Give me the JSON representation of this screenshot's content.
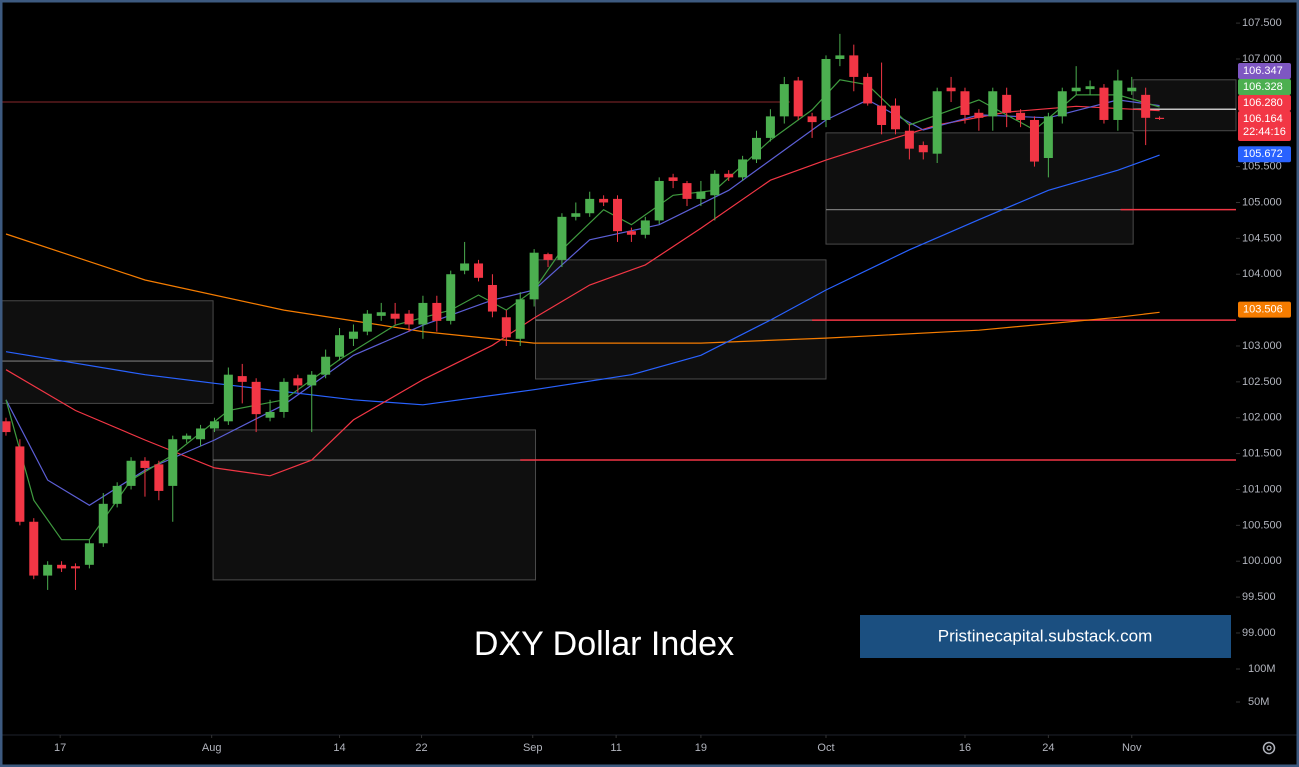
{
  "chart_data": {
    "type": "candlestick",
    "title": "DXY Dollar Index",
    "watermark": "Pristinecapital.substack.com",
    "up_color": "#4caf50",
    "down_color": "#f23645",
    "ylim": [
      97.578,
      107.822
    ],
    "xlim": [
      -0.43,
      88.5
    ],
    "yticks": [
      {
        "value": 107.5,
        "label": "107.500"
      },
      {
        "value": 107,
        "label": "107.000"
      },
      {
        "value": 105.5,
        "label": "105.500"
      },
      {
        "value": 105,
        "label": "105.000"
      },
      {
        "value": 104.5,
        "label": "104.500"
      },
      {
        "value": 104,
        "label": "104.000"
      },
      {
        "value": 103,
        "label": "103.000"
      },
      {
        "value": 102.5,
        "label": "102.500"
      },
      {
        "value": 102,
        "label": "102.000"
      },
      {
        "value": 101.5,
        "label": "101.500"
      },
      {
        "value": 101,
        "label": "101.000"
      },
      {
        "value": 100.5,
        "label": "100.500"
      },
      {
        "value": 100,
        "label": "100.000"
      },
      {
        "value": 99.5,
        "label": "99.500"
      },
      {
        "value": 99,
        "label": "99.000"
      }
    ],
    "volume_ylim": [
      0,
      100000000
    ],
    "volume_ticks": [
      {
        "value": 100000000,
        "label": "100M"
      },
      {
        "value": 50000000,
        "label": "50M"
      }
    ],
    "xticks": [
      {
        "value": 3.9,
        "label": "17"
      },
      {
        "value": 14.8,
        "label": "Aug"
      },
      {
        "value": 24.0,
        "label": "14"
      },
      {
        "value": 29.9,
        "label": "22"
      },
      {
        "value": 37.9,
        "label": "Sep"
      },
      {
        "value": 43.9,
        "label": "11"
      },
      {
        "value": 50.0,
        "label": "19"
      },
      {
        "value": 59.0,
        "label": "Oct"
      },
      {
        "value": 69.0,
        "label": "16"
      },
      {
        "value": 75.0,
        "label": "24"
      },
      {
        "value": 81.0,
        "label": "Nov"
      }
    ],
    "open": [
      101.95,
      101.6,
      100.55,
      99.8,
      99.95,
      99.93,
      99.95,
      100.25,
      100.8,
      101.05,
      101.4,
      101.35,
      101.05,
      101.7,
      101.7,
      101.85,
      101.95,
      102.58,
      102.5,
      102.0,
      102.08,
      102.55,
      102.45,
      102.6,
      102.85,
      103.1,
      103.2,
      103.42,
      103.45,
      103.45,
      103.3,
      103.6,
      103.35,
      104.05,
      104.15,
      103.85,
      103.4,
      103.1,
      103.65,
      104.28,
      104.2,
      104.8,
      104.85,
      105.05,
      105.05,
      104.6,
      104.55,
      104.75,
      105.35,
      105.27,
      105.05,
      105.1,
      105.4,
      105.35,
      105.6,
      105.9,
      106.2,
      106.7,
      106.2,
      106.15,
      107.0,
      107.05,
      106.75,
      106.35,
      106.35,
      106.0,
      105.8,
      105.68,
      106.6,
      106.55,
      106.25,
      106.2,
      106.5,
      106.25,
      106.15,
      105.62,
      106.2,
      106.55,
      106.58,
      106.6,
      106.15,
      106.55,
      106.5,
      106.18
    ],
    "high": [
      102.0,
      101.7,
      100.6,
      100.0,
      100.0,
      99.97,
      100.3,
      100.95,
      101.1,
      101.45,
      101.45,
      101.4,
      101.75,
      101.78,
      101.9,
      102.0,
      102.7,
      102.75,
      102.55,
      102.25,
      102.55,
      102.6,
      102.65,
      102.95,
      103.25,
      103.3,
      103.5,
      103.6,
      103.6,
      103.5,
      103.7,
      103.7,
      104.05,
      104.45,
      104.2,
      104.0,
      103.5,
      103.75,
      104.35,
      104.3,
      104.85,
      105.0,
      105.15,
      105.1,
      105.1,
      104.65,
      104.8,
      105.35,
      105.4,
      105.3,
      105.3,
      105.45,
      105.45,
      105.65,
      106.0,
      106.3,
      106.75,
      106.75,
      106.25,
      107.05,
      107.35,
      107.2,
      106.8,
      106.95,
      106.45,
      106.1,
      105.85,
      106.6,
      106.75,
      106.6,
      106.3,
      106.6,
      106.6,
      106.3,
      106.2,
      106.25,
      106.6,
      106.9,
      106.7,
      106.65,
      106.85,
      106.75,
      106.6,
      106.2
    ],
    "low": [
      101.75,
      100.5,
      99.75,
      99.6,
      99.85,
      99.6,
      99.9,
      100.2,
      100.75,
      101.0,
      100.9,
      100.85,
      100.55,
      101.65,
      101.6,
      101.8,
      101.9,
      102.2,
      101.8,
      101.95,
      102.0,
      102.35,
      101.8,
      102.55,
      102.8,
      103.0,
      103.15,
      103.35,
      103.3,
      103.2,
      103.1,
      103.2,
      103.3,
      104.0,
      103.9,
      103.4,
      103.0,
      103.0,
      103.55,
      104.1,
      104.1,
      104.75,
      104.8,
      104.95,
      104.45,
      104.45,
      104.5,
      104.7,
      105.2,
      104.95,
      104.95,
      104.75,
      105.3,
      105.3,
      105.55,
      105.85,
      106.1,
      106.15,
      105.9,
      106.05,
      106.9,
      106.55,
      106.35,
      105.95,
      105.95,
      105.6,
      105.6,
      105.55,
      106.4,
      106.1,
      106.0,
      106.0,
      106.05,
      106.05,
      105.5,
      105.35,
      106.1,
      106.5,
      106.5,
      106.1,
      106.0,
      106.5,
      105.8,
      106.15
    ],
    "close": [
      101.8,
      100.55,
      99.8,
      99.95,
      99.9,
      99.9,
      100.25,
      100.8,
      101.05,
      101.4,
      101.3,
      100.98,
      101.7,
      101.75,
      101.85,
      101.95,
      102.6,
      102.5,
      102.05,
      102.08,
      102.5,
      102.45,
      102.6,
      102.85,
      103.15,
      103.2,
      103.45,
      103.47,
      103.38,
      103.3,
      103.6,
      103.35,
      104.0,
      104.15,
      103.95,
      103.48,
      103.12,
      103.65,
      104.3,
      104.2,
      104.8,
      104.85,
      105.05,
      105.0,
      104.6,
      104.55,
      104.75,
      105.3,
      105.3,
      105.05,
      105.15,
      105.4,
      105.35,
      105.6,
      105.9,
      106.2,
      106.65,
      106.2,
      106.12,
      107.0,
      107.05,
      106.75,
      106.38,
      106.08,
      106.02,
      105.75,
      105.7,
      106.55,
      106.55,
      106.22,
      106.18,
      106.55,
      106.25,
      106.15,
      105.57,
      106.2,
      106.55,
      106.6,
      106.62,
      106.15,
      106.7,
      106.6,
      106.18,
      106.164
    ],
    "series": [
      {
        "color": "#f57c00",
        "x": [
          0,
          10,
          20,
          30,
          38,
          50,
          59,
          70,
          80,
          83
        ],
        "values": [
          104.56,
          103.92,
          103.5,
          103.2,
          103.04,
          103.04,
          103.11,
          103.22,
          103.4,
          103.47
        ]
      },
      {
        "color": "#2962ff",
        "x": [
          0,
          10,
          15,
          25,
          30,
          38,
          45,
          50,
          55,
          59,
          65,
          70,
          75,
          80,
          83
        ],
        "values": [
          102.92,
          102.6,
          102.48,
          102.25,
          102.18,
          102.39,
          102.6,
          102.87,
          103.36,
          103.78,
          104.34,
          104.76,
          105.17,
          105.45,
          105.66
        ]
      },
      {
        "color": "#f23645",
        "x": [
          0,
          5,
          10,
          15,
          19,
          22,
          25,
          30,
          35,
          38,
          42,
          46,
          50,
          55,
          59,
          63,
          67,
          72,
          77,
          83
        ],
        "values": [
          102.67,
          102.1,
          101.69,
          101.3,
          101.19,
          101.41,
          101.97,
          102.53,
          103.01,
          103.39,
          103.85,
          104.13,
          104.64,
          105.31,
          105.59,
          105.84,
          106.08,
          106.26,
          106.34,
          106.28
        ]
      },
      {
        "color": "#5c5fd6",
        "x": [
          0,
          3,
          6,
          10,
          15,
          20,
          25,
          30,
          35,
          38,
          42,
          47,
          52,
          56,
          59,
          62,
          66,
          70,
          75,
          80,
          83
        ],
        "values": [
          102.25,
          101.13,
          100.78,
          101.27,
          101.69,
          102.18,
          102.87,
          103.29,
          103.64,
          103.78,
          104.48,
          104.69,
          105.17,
          105.73,
          106.15,
          106.43,
          106.01,
          106.22,
          106.18,
          106.43,
          106.35
        ]
      },
      {
        "color": "#3f9a3f",
        "x": [
          0,
          2,
          4,
          6,
          9,
          12,
          16,
          20,
          24,
          28,
          32,
          34,
          36,
          38,
          40,
          43,
          45,
          48,
          51,
          55,
          58,
          60,
          62,
          65,
          67,
          70,
          74,
          77,
          80,
          83
        ],
        "values": [
          102.25,
          100.85,
          100.3,
          100.3,
          101.13,
          101.48,
          102.1,
          102.25,
          102.81,
          103.29,
          103.5,
          103.71,
          103.5,
          103.78,
          104.34,
          104.9,
          104.69,
          105.1,
          105.17,
          105.87,
          106.29,
          106.71,
          106.64,
          106.08,
          106.22,
          106.43,
          106.01,
          106.5,
          106.5,
          106.33
        ]
      }
    ],
    "zones": [
      {
        "x": [
          -0.43,
          14.9
        ],
        "ylim": [
          102.2,
          103.63
        ],
        "mid": 102.79,
        "mid_color": "#777"
      },
      {
        "x": [
          14.9,
          38.1
        ],
        "ylim": [
          99.74,
          101.83
        ],
        "mid": 101.41,
        "mid_color": "#777"
      },
      {
        "x": [
          38.1,
          59.0
        ],
        "ylim": [
          102.54,
          104.2
        ],
        "mid": 103.36,
        "mid_color": "#777"
      },
      {
        "x": [
          59.0,
          81.1
        ],
        "ylim": [
          104.42,
          105.97
        ],
        "mid": 104.9,
        "mid_color": "#777"
      },
      {
        "x": [
          81.1,
          88.5
        ],
        "ylim": [
          106.0,
          106.71
        ],
        "mid": 106.3,
        "mid_color": "#ffffff"
      }
    ],
    "levels": [
      {
        "value": 106.4,
        "x": [
          -0.43,
          56.4
        ],
        "color": "#5a1a1e"
      },
      {
        "value": 101.41,
        "x": [
          37.0,
          88.5
        ],
        "color": "#f23645"
      },
      {
        "value": 103.36,
        "x": [
          58.0,
          88.5
        ],
        "color": "#f23645"
      },
      {
        "value": 104.9,
        "x": [
          80.2,
          88.5
        ],
        "color": "#f23645"
      }
    ],
    "price_labels": [
      {
        "value": 106.347,
        "label": "106.347",
        "color": "#7e57c2"
      },
      {
        "value": 106.328,
        "label": "106.328",
        "color": "#4caf50"
      },
      {
        "value": 106.28,
        "label": "106.280",
        "color": "#f23645"
      },
      {
        "value": 106.164,
        "label": "106.164",
        "sub": "22:44:16",
        "color": "#f23645"
      },
      {
        "value": 105.672,
        "label": "105.672",
        "color": "#2962ff"
      },
      {
        "value": 103.506,
        "label": "103.506",
        "color": "#f57c00"
      }
    ]
  }
}
